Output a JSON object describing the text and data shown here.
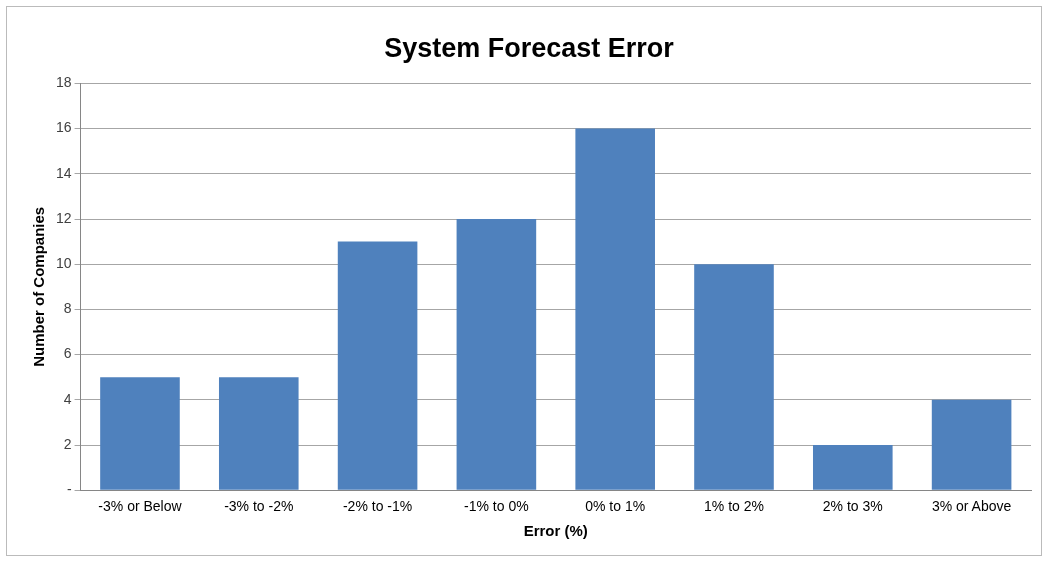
{
  "chart_data": {
    "type": "bar",
    "title": "System Forecast Error",
    "xlabel": "Error (%)",
    "ylabel": "Number of Companies",
    "categories": [
      "-3% or Below",
      "-3% to -2%",
      "-2% to -1%",
      "-1% to 0%",
      "0% to 1%",
      "1% to 2%",
      "2% to 3%",
      "3% or Above"
    ],
    "values": [
      5,
      5,
      11,
      12,
      16,
      10,
      2,
      4
    ],
    "color": "#4f81bd",
    "ylim": [
      0,
      18
    ],
    "yticks": [
      {
        "value": 0,
        "label": "-"
      },
      2,
      4,
      6,
      8,
      10,
      12,
      14,
      16,
      18
    ],
    "grid": "y",
    "legend": false
  }
}
